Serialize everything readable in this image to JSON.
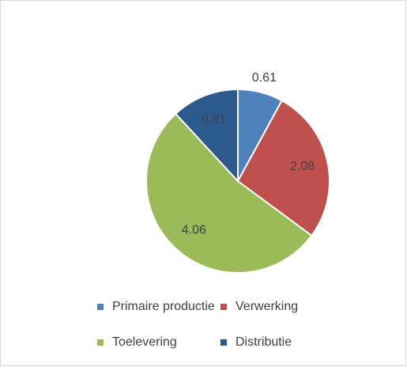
{
  "chart_data": {
    "type": "pie",
    "categories": [
      "Primaire productie",
      "Verwerking",
      "Toelevering",
      "Distributie"
    ],
    "values": [
      0.61,
      2.08,
      4.06,
      0.91
    ],
    "colors": [
      "#4f81bd",
      "#c0504d",
      "#9bbb59",
      "#2c5a8f"
    ],
    "legend": "bottom"
  }
}
